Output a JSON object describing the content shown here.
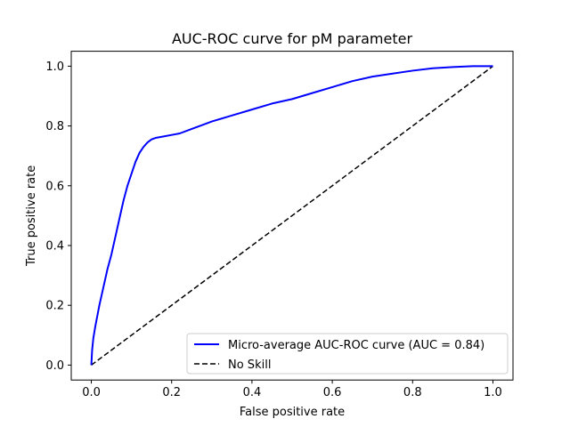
{
  "chart_data": {
    "type": "line",
    "title": "AUC-ROC curve for pM parameter",
    "xlabel": "False positive rate",
    "ylabel": "True positive rate",
    "xlim": [
      -0.05,
      1.05
    ],
    "ylim": [
      -0.05,
      1.05
    ],
    "xticks": [
      "0.0",
      "0.2",
      "0.4",
      "0.6",
      "0.8",
      "1.0"
    ],
    "yticks": [
      "0.0",
      "0.2",
      "0.4",
      "0.6",
      "0.8",
      "1.0"
    ],
    "grid": false,
    "legend_position": "lower-right",
    "series": [
      {
        "name": "Micro-average AUC-ROC curve (AUC = 0.84)",
        "color": "#0000ff",
        "style": "solid",
        "x": [
          0.0,
          0.002,
          0.005,
          0.01,
          0.02,
          0.03,
          0.04,
          0.05,
          0.06,
          0.07,
          0.08,
          0.09,
          0.1,
          0.11,
          0.12,
          0.13,
          0.14,
          0.15,
          0.16,
          0.18,
          0.2,
          0.22,
          0.25,
          0.28,
          0.3,
          0.35,
          0.4,
          0.45,
          0.5,
          0.55,
          0.6,
          0.65,
          0.7,
          0.75,
          0.8,
          0.85,
          0.9,
          0.95,
          1.0
        ],
        "y": [
          0.0,
          0.05,
          0.09,
          0.13,
          0.2,
          0.26,
          0.32,
          0.37,
          0.43,
          0.49,
          0.55,
          0.6,
          0.64,
          0.68,
          0.71,
          0.73,
          0.745,
          0.755,
          0.76,
          0.765,
          0.77,
          0.775,
          0.79,
          0.805,
          0.815,
          0.835,
          0.855,
          0.875,
          0.89,
          0.91,
          0.93,
          0.95,
          0.965,
          0.975,
          0.985,
          0.993,
          0.997,
          1.0,
          1.0
        ]
      },
      {
        "name": "No Skill",
        "color": "#000000",
        "style": "dashed",
        "x": [
          0.0,
          1.0
        ],
        "y": [
          0.0,
          1.0
        ]
      }
    ]
  }
}
